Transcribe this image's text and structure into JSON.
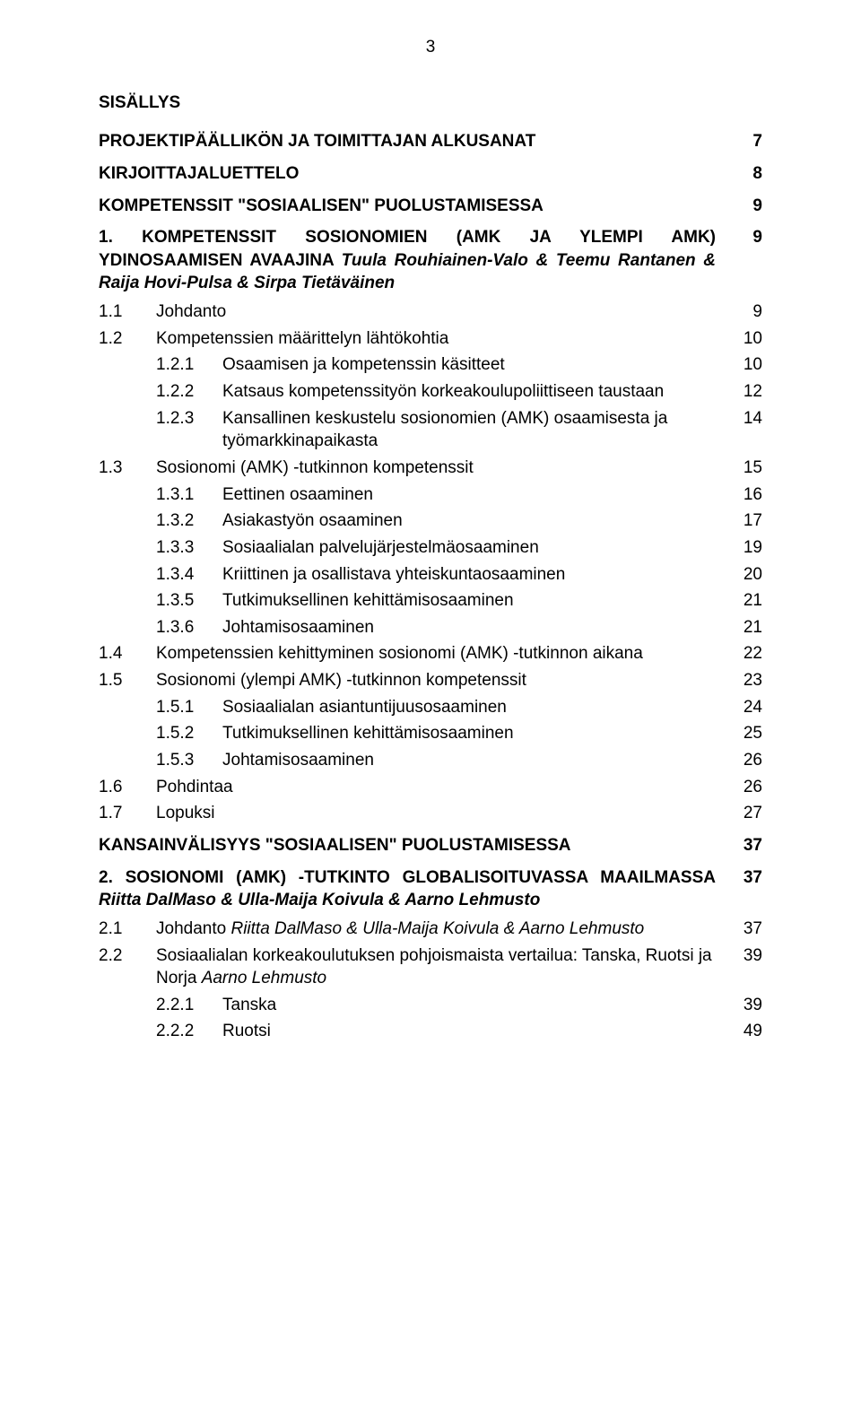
{
  "page_number": "3",
  "text_color": "#000000",
  "background_color": "#ffffff",
  "lines": [
    {
      "cls": "row gap-l ind0 bold",
      "label": "",
      "text": "SISÄLLYS",
      "page": ""
    },
    {
      "cls": "row gap-l ind0 bold",
      "label": "",
      "text": "PROJEKTIPÄÄLLIKÖN JA TOIMITTAJAN ALKUSANAT",
      "page": "7"
    },
    {
      "cls": "row gap-m ind0 bold",
      "label": "",
      "text": "KIRJOITTAJALUETTELO",
      "page": "8"
    },
    {
      "cls": "row gap-m ind0 bold",
      "label": "",
      "text": "KOMPETENSSIT \"SOSIAALISEN\" PUOLUSTAMISESSA",
      "page": "9"
    },
    {
      "cls": "row gap-m ind0 bold justify",
      "label": "",
      "text": "1. KOMPETENSSIT SOSIONOMIEN (AMK JA YLEMPI AMK) YDINOSAAMISEN AVAAJINA <span class=\"italic\">Tuula Rouhiainen-Valo &amp; Teemu Rantanen &amp; Raija Hovi-Pulsa &amp; Sirpa Tietäväinen</span>",
      "page": "9"
    },
    {
      "cls": "row gap-s ind1",
      "label": "1.1",
      "text": "Johdanto",
      "page": "9"
    },
    {
      "cls": "row ind1",
      "label": "1.2",
      "text": "Kompetenssien määrittelyn lähtökohtia",
      "page": "10"
    },
    {
      "cls": "row ind2",
      "label": "1.2.1",
      "text": "Osaamisen ja kompetenssin käsitteet",
      "page": "10"
    },
    {
      "cls": "row ind2",
      "label": "1.2.2",
      "text": "Katsaus kompetenssityön korkeakoulupoliittiseen taustaan",
      "page": "12"
    },
    {
      "cls": "row ind2",
      "label": "1.2.3",
      "text": "Kansallinen keskustelu sosionomien (AMK) osaamisesta ja työmarkkinapaikasta",
      "page": "14"
    },
    {
      "cls": "row ind1",
      "label": "1.3",
      "text": "Sosionomi (AMK) -tutkinnon kompetenssit",
      "page": "15"
    },
    {
      "cls": "row ind2",
      "label": "1.3.1",
      "text": "Eettinen osaaminen",
      "page": "16"
    },
    {
      "cls": "row ind2",
      "label": "1.3.2",
      "text": "Asiakastyön osaaminen",
      "page": "17"
    },
    {
      "cls": "row ind2",
      "label": "1.3.3",
      "text": "Sosiaalialan palvelujärjestelmäosaaminen",
      "page": "19"
    },
    {
      "cls": "row ind2",
      "label": "1.3.4",
      "text": "Kriittinen ja osallistava yhteiskuntaosaaminen",
      "page": "20"
    },
    {
      "cls": "row ind2",
      "label": "1.3.5",
      "text": "Tutkimuksellinen kehittämisosaaminen",
      "page": "21"
    },
    {
      "cls": "row ind2",
      "label": "1.3.6",
      "text": "Johtamisosaaminen",
      "page": "21"
    },
    {
      "cls": "row ind1",
      "label": "1.4",
      "text": "Kompetenssien kehittyminen sosionomi (AMK) -tutkinnon aikana",
      "page": "22"
    },
    {
      "cls": "row ind1",
      "label": "1.5",
      "text": "Sosionomi (ylempi AMK) -tutkinnon kompetenssit",
      "page": "23"
    },
    {
      "cls": "row ind2",
      "label": "1.5.1",
      "text": "Sosiaalialan asiantuntijuusosaaminen",
      "page": "24"
    },
    {
      "cls": "row ind2",
      "label": "1.5.2",
      "text": "Tutkimuksellinen kehittämisosaaminen",
      "page": "25"
    },
    {
      "cls": "row ind2",
      "label": "1.5.3",
      "text": "Johtamisosaaminen",
      "page": "26"
    },
    {
      "cls": "row ind1",
      "label": "1.6",
      "text": "Pohdintaa",
      "page": "26"
    },
    {
      "cls": "row ind1",
      "label": "1.7",
      "text": "Lopuksi",
      "page": "27"
    },
    {
      "cls": "row gap-m ind0 bold",
      "label": "",
      "text": "KANSAINVÄLISYYS \"SOSIAALISEN\" PUOLUSTAMISESSA",
      "page": "37"
    },
    {
      "cls": "row gap-m ind0 bold justify",
      "label": "",
      "text": "2. SOSIONOMI (AMK) -TUTKINTO GLOBALISOITUVASSA MAAILMASSA <span class=\"italic\">Riitta DalMaso &amp; Ulla-Maija Koivula &amp; Aarno Lehmusto</span>",
      "page": "37"
    },
    {
      "cls": "row gap-s ind1",
      "label": "2.1",
      "text": "Johdanto <span class=\"italic\">Riitta DalMaso &amp; Ulla-Maija Koivula &amp; Aarno Lehmusto</span>",
      "page": "37"
    },
    {
      "cls": "row ind1",
      "label": "2.2",
      "text": "Sosiaalialan korkeakoulutuksen pohjoismaista vertailua: Tanska, Ruotsi ja Norja <span class=\"italic\">Aarno Lehmusto</span>",
      "page": "39"
    },
    {
      "cls": "row ind2",
      "label": "2.2.1",
      "text": "Tanska",
      "page": "39"
    },
    {
      "cls": "row ind2",
      "label": "2.2.2",
      "text": "Ruotsi",
      "page": "49"
    }
  ]
}
